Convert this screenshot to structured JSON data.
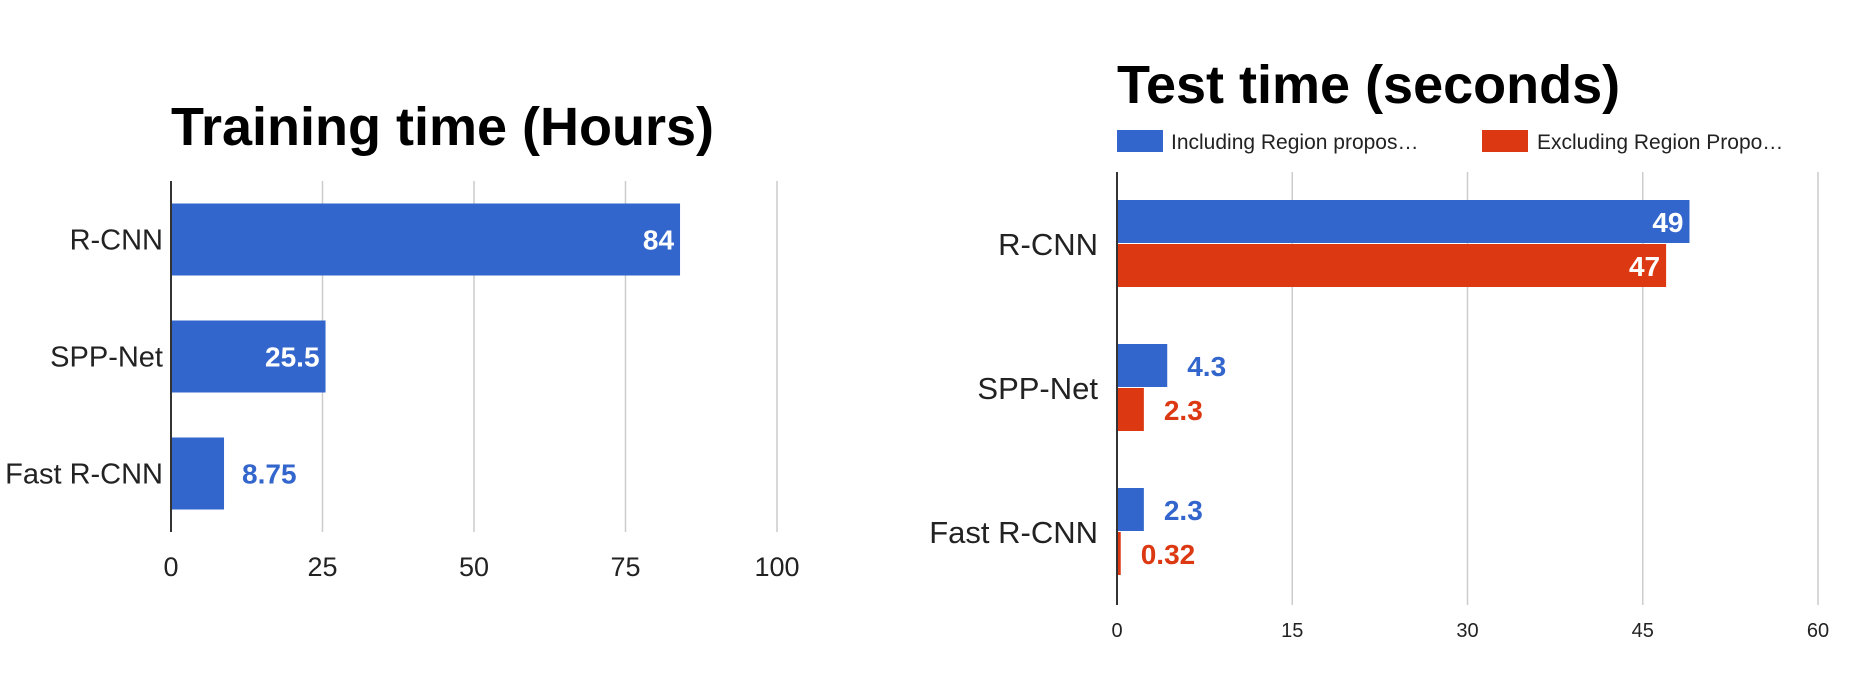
{
  "colors": {
    "blue": "#3366cc",
    "red": "#dc3912"
  },
  "chart_data": [
    {
      "type": "bar",
      "orientation": "horizontal",
      "title": "Training time (Hours)",
      "categories": [
        "R-CNN",
        "SPP-Net",
        "Fast R-CNN"
      ],
      "values": [
        84,
        25.5,
        8.75
      ],
      "data_labels": [
        "84",
        "25.5",
        "8.75"
      ],
      "xlim": [
        0,
        100
      ],
      "xticks": [
        "0",
        "25",
        "50",
        "75",
        "100"
      ],
      "grid": true,
      "legend": "none"
    },
    {
      "type": "bar",
      "orientation": "horizontal",
      "title": "Test time (seconds)",
      "categories": [
        "R-CNN",
        "SPP-Net",
        "Fast R-CNN"
      ],
      "series": [
        {
          "name": "Including Region propos…",
          "values": [
            49,
            4.3,
            2.3
          ],
          "data_labels": [
            "49",
            "4.3",
            "2.3"
          ],
          "color": "#3366cc"
        },
        {
          "name": "Excluding Region Propo…",
          "values": [
            47,
            2.3,
            0.32
          ],
          "data_labels": [
            "47",
            "2.3",
            "0.32"
          ],
          "color": "#dc3912"
        }
      ],
      "xlim": [
        0,
        60
      ],
      "xticks": [
        "0",
        "15",
        "30",
        "45",
        "60"
      ],
      "grid": true,
      "legend": "top"
    }
  ]
}
